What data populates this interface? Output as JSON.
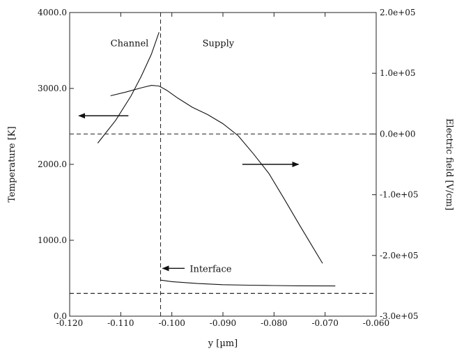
{
  "chart_data": {
    "type": "line",
    "xlabel": "y [µm]",
    "ylabel_left": "Temperature [K]",
    "ylabel_right": "Electric field [V/cm]",
    "xlim": [
      -0.12,
      -0.06
    ],
    "ylim_left": [
      0,
      4000
    ],
    "ylim_right": [
      -300000,
      200000
    ],
    "x_ticks": [
      -0.12,
      -0.11,
      -0.1,
      -0.09,
      -0.08,
      -0.07,
      -0.06
    ],
    "x_tick_labels": [
      "-0.120",
      "-0.110",
      "-0.100",
      "-0.090",
      "-0.080",
      "-0.070",
      "-0.060"
    ],
    "yleft_ticks": [
      0,
      1000,
      2000,
      3000,
      4000
    ],
    "yleft_tick_labels": [
      "0.0",
      "1000.0",
      "2000.0",
      "3000.0",
      "4000.0"
    ],
    "yright_ticks": [
      -300000,
      -200000,
      -100000,
      0,
      100000,
      200000
    ],
    "yright_tick_labels": [
      "-3.0e+05",
      "-2.0e+05",
      "-1.0e+05",
      "0.0e+00",
      "1.0e+05",
      "2.0e+05"
    ],
    "grid": false,
    "series": [
      {
        "axis": "left",
        "x": [
          -0.1145,
          -0.111,
          -0.108,
          -0.106,
          -0.104,
          -0.1025
        ],
        "y": [
          2280,
          2580,
          2900,
          3160,
          3450,
          3740
        ]
      },
      {
        "axis": "left",
        "x": [
          -0.1022,
          -0.1,
          -0.095,
          -0.09,
          -0.085,
          -0.08,
          -0.075,
          -0.068
        ],
        "y": [
          475,
          455,
          430,
          415,
          408,
          404,
          400,
          398
        ]
      },
      {
        "axis": "left",
        "x": [
          -0.12,
          -0.06
        ],
        "y": [
          300,
          300
        ],
        "dashed": true
      },
      {
        "axis": "right",
        "x": [
          -0.112,
          -0.109,
          -0.106,
          -0.104,
          -0.1025,
          -0.101,
          -0.099,
          -0.096,
          -0.093,
          -0.09,
          -0.087,
          -0.084,
          -0.081,
          -0.078,
          -0.075,
          -0.0725,
          -0.0705
        ],
        "y": [
          63000,
          69000,
          76000,
          80000,
          79000,
          72000,
          60000,
          44000,
          32000,
          17000,
          -3000,
          -33000,
          -65000,
          -107000,
          -150000,
          -185000,
          -213000
        ]
      }
    ],
    "reference_lines": [
      {
        "orientation": "horizontal",
        "axis": "right",
        "value": 0,
        "dashed": true
      },
      {
        "orientation": "vertical",
        "value": -0.1022,
        "dashed": true
      }
    ],
    "annotations": [
      {
        "text": "Channel",
        "x": -0.112,
        "y_left": 3600
      },
      {
        "text": "Supply",
        "x": -0.094,
        "y_left": 3600
      },
      {
        "text": "Interface",
        "x": -0.0965,
        "y_left": 630
      }
    ],
    "arrows": [
      {
        "from": [
          -0.1085,
          2640
        ],
        "to": [
          -0.1182,
          2640
        ],
        "axis": "left"
      },
      {
        "from": [
          -0.0862,
          2000
        ],
        "to": [
          -0.0752,
          2000
        ],
        "axis": "left"
      },
      {
        "from": [
          -0.0975,
          630
        ],
        "to": [
          -0.1018,
          630
        ],
        "axis": "left"
      }
    ]
  }
}
